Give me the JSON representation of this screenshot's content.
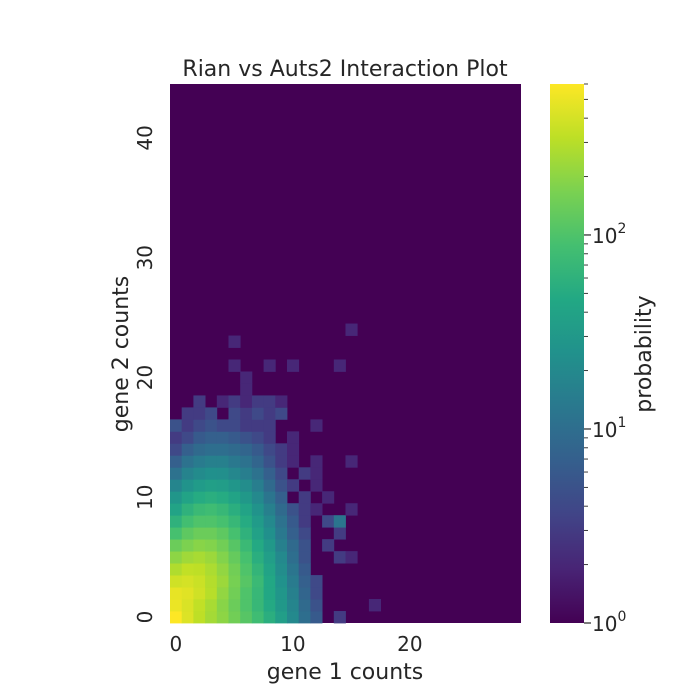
{
  "chart_data": {
    "type": "heatmap",
    "title": "Rian vs Auts2 Interaction Plot",
    "xlabel": "gene 1 counts",
    "ylabel": "gene 2 counts",
    "x_range": [
      0,
      29
    ],
    "y_range": [
      0,
      44
    ],
    "x_ticks": [
      0,
      10,
      20
    ],
    "y_ticks": [
      0,
      10,
      20,
      30,
      40
    ],
    "colormap": "viridis",
    "background_value": 1,
    "colorbar": {
      "label": "probability",
      "scale": "log",
      "range": [
        1,
        600
      ],
      "tick_values": [
        1,
        10,
        100
      ],
      "tick_labels": [
        {
          "base": "10",
          "exp": "0"
        },
        {
          "base": "10",
          "exp": "1"
        },
        {
          "base": "10",
          "exp": "2"
        }
      ]
    },
    "cells": [
      {
        "x": 0,
        "y": 0,
        "v": 600
      },
      {
        "x": 1,
        "y": 0,
        "v": 430
      },
      {
        "x": 2,
        "y": 0,
        "v": 320
      },
      {
        "x": 3,
        "y": 0,
        "v": 250
      },
      {
        "x": 4,
        "y": 0,
        "v": 200
      },
      {
        "x": 5,
        "y": 0,
        "v": 150
      },
      {
        "x": 6,
        "y": 0,
        "v": 110
      },
      {
        "x": 7,
        "y": 0,
        "v": 80
      },
      {
        "x": 8,
        "y": 0,
        "v": 55
      },
      {
        "x": 9,
        "y": 0,
        "v": 35
      },
      {
        "x": 10,
        "y": 0,
        "v": 20
      },
      {
        "x": 11,
        "y": 0,
        "v": 10
      },
      {
        "x": 12,
        "y": 0,
        "v": 6
      },
      {
        "x": 14,
        "y": 0,
        "v": 3
      },
      {
        "x": 0,
        "y": 1,
        "v": 500
      },
      {
        "x": 1,
        "y": 1,
        "v": 420
      },
      {
        "x": 2,
        "y": 1,
        "v": 330
      },
      {
        "x": 3,
        "y": 1,
        "v": 260
      },
      {
        "x": 4,
        "y": 1,
        "v": 190
      },
      {
        "x": 5,
        "y": 1,
        "v": 140
      },
      {
        "x": 6,
        "y": 1,
        "v": 100
      },
      {
        "x": 7,
        "y": 1,
        "v": 70
      },
      {
        "x": 8,
        "y": 1,
        "v": 48
      },
      {
        "x": 9,
        "y": 1,
        "v": 30
      },
      {
        "x": 10,
        "y": 1,
        "v": 18
      },
      {
        "x": 11,
        "y": 1,
        "v": 9
      },
      {
        "x": 12,
        "y": 1,
        "v": 5
      },
      {
        "x": 17,
        "y": 1,
        "v": 2
      },
      {
        "x": 0,
        "y": 2,
        "v": 480
      },
      {
        "x": 1,
        "y": 2,
        "v": 450
      },
      {
        "x": 2,
        "y": 2,
        "v": 380
      },
      {
        "x": 3,
        "y": 2,
        "v": 300
      },
      {
        "x": 4,
        "y": 2,
        "v": 210
      },
      {
        "x": 5,
        "y": 2,
        "v": 150
      },
      {
        "x": 6,
        "y": 2,
        "v": 100
      },
      {
        "x": 7,
        "y": 2,
        "v": 70
      },
      {
        "x": 8,
        "y": 2,
        "v": 45
      },
      {
        "x": 9,
        "y": 2,
        "v": 28
      },
      {
        "x": 10,
        "y": 2,
        "v": 16
      },
      {
        "x": 11,
        "y": 2,
        "v": 8
      },
      {
        "x": 12,
        "y": 2,
        "v": 4
      },
      {
        "x": 0,
        "y": 3,
        "v": 380
      },
      {
        "x": 1,
        "y": 3,
        "v": 400
      },
      {
        "x": 2,
        "y": 3,
        "v": 360
      },
      {
        "x": 3,
        "y": 3,
        "v": 290
      },
      {
        "x": 4,
        "y": 3,
        "v": 230
      },
      {
        "x": 5,
        "y": 3,
        "v": 160
      },
      {
        "x": 6,
        "y": 3,
        "v": 110
      },
      {
        "x": 7,
        "y": 3,
        "v": 75
      },
      {
        "x": 8,
        "y": 3,
        "v": 45
      },
      {
        "x": 9,
        "y": 3,
        "v": 25
      },
      {
        "x": 10,
        "y": 3,
        "v": 14
      },
      {
        "x": 11,
        "y": 3,
        "v": 7
      },
      {
        "x": 12,
        "y": 3,
        "v": 4
      },
      {
        "x": 0,
        "y": 4,
        "v": 280
      },
      {
        "x": 1,
        "y": 4,
        "v": 330
      },
      {
        "x": 2,
        "y": 4,
        "v": 320
      },
      {
        "x": 3,
        "y": 4,
        "v": 270
      },
      {
        "x": 4,
        "y": 4,
        "v": 210
      },
      {
        "x": 5,
        "y": 4,
        "v": 150
      },
      {
        "x": 6,
        "y": 4,
        "v": 100
      },
      {
        "x": 7,
        "y": 4,
        "v": 65
      },
      {
        "x": 8,
        "y": 4,
        "v": 40
      },
      {
        "x": 9,
        "y": 4,
        "v": 22
      },
      {
        "x": 10,
        "y": 4,
        "v": 12
      },
      {
        "x": 11,
        "y": 4,
        "v": 6
      },
      {
        "x": 0,
        "y": 5,
        "v": 200
      },
      {
        "x": 1,
        "y": 5,
        "v": 240
      },
      {
        "x": 2,
        "y": 5,
        "v": 260
      },
      {
        "x": 3,
        "y": 5,
        "v": 230
      },
      {
        "x": 4,
        "y": 5,
        "v": 180
      },
      {
        "x": 5,
        "y": 5,
        "v": 130
      },
      {
        "x": 6,
        "y": 5,
        "v": 90
      },
      {
        "x": 7,
        "y": 5,
        "v": 55
      },
      {
        "x": 8,
        "y": 5,
        "v": 35
      },
      {
        "x": 9,
        "y": 5,
        "v": 20
      },
      {
        "x": 10,
        "y": 5,
        "v": 10
      },
      {
        "x": 11,
        "y": 5,
        "v": 5
      },
      {
        "x": 14,
        "y": 5,
        "v": 3
      },
      {
        "x": 15,
        "y": 5,
        "v": 2
      },
      {
        "x": 0,
        "y": 6,
        "v": 140
      },
      {
        "x": 1,
        "y": 6,
        "v": 170
      },
      {
        "x": 2,
        "y": 6,
        "v": 190
      },
      {
        "x": 3,
        "y": 6,
        "v": 180
      },
      {
        "x": 4,
        "y": 6,
        "v": 150
      },
      {
        "x": 5,
        "y": 6,
        "v": 110
      },
      {
        "x": 6,
        "y": 6,
        "v": 75
      },
      {
        "x": 7,
        "y": 6,
        "v": 48
      },
      {
        "x": 8,
        "y": 6,
        "v": 30
      },
      {
        "x": 9,
        "y": 6,
        "v": 16
      },
      {
        "x": 10,
        "y": 6,
        "v": 9
      },
      {
        "x": 11,
        "y": 6,
        "v": 5
      },
      {
        "x": 13,
        "y": 6,
        "v": 3
      },
      {
        "x": 0,
        "y": 7,
        "v": 90
      },
      {
        "x": 1,
        "y": 7,
        "v": 120
      },
      {
        "x": 2,
        "y": 7,
        "v": 140
      },
      {
        "x": 3,
        "y": 7,
        "v": 140
      },
      {
        "x": 4,
        "y": 7,
        "v": 120
      },
      {
        "x": 5,
        "y": 7,
        "v": 90
      },
      {
        "x": 6,
        "y": 7,
        "v": 60
      },
      {
        "x": 7,
        "y": 7,
        "v": 38
      },
      {
        "x": 8,
        "y": 7,
        "v": 24
      },
      {
        "x": 9,
        "y": 7,
        "v": 13
      },
      {
        "x": 10,
        "y": 7,
        "v": 7
      },
      {
        "x": 11,
        "y": 7,
        "v": 4
      },
      {
        "x": 14,
        "y": 7,
        "v": 3
      },
      {
        "x": 0,
        "y": 8,
        "v": 60
      },
      {
        "x": 1,
        "y": 8,
        "v": 85
      },
      {
        "x": 2,
        "y": 8,
        "v": 100
      },
      {
        "x": 3,
        "y": 8,
        "v": 100
      },
      {
        "x": 4,
        "y": 8,
        "v": 90
      },
      {
        "x": 5,
        "y": 8,
        "v": 70
      },
      {
        "x": 6,
        "y": 8,
        "v": 50
      },
      {
        "x": 7,
        "y": 8,
        "v": 32
      },
      {
        "x": 8,
        "y": 8,
        "v": 20
      },
      {
        "x": 9,
        "y": 8,
        "v": 11
      },
      {
        "x": 10,
        "y": 8,
        "v": 6
      },
      {
        "x": 11,
        "y": 8,
        "v": 3
      },
      {
        "x": 13,
        "y": 8,
        "v": 4
      },
      {
        "x": 14,
        "y": 8,
        "v": 12
      },
      {
        "x": 0,
        "y": 9,
        "v": 40
      },
      {
        "x": 1,
        "y": 9,
        "v": 60
      },
      {
        "x": 2,
        "y": 9,
        "v": 75
      },
      {
        "x": 3,
        "y": 9,
        "v": 80
      },
      {
        "x": 4,
        "y": 9,
        "v": 70
      },
      {
        "x": 5,
        "y": 9,
        "v": 55
      },
      {
        "x": 6,
        "y": 9,
        "v": 40
      },
      {
        "x": 7,
        "y": 9,
        "v": 26
      },
      {
        "x": 8,
        "y": 9,
        "v": 16
      },
      {
        "x": 9,
        "y": 9,
        "v": 9
      },
      {
        "x": 10,
        "y": 9,
        "v": 5
      },
      {
        "x": 11,
        "y": 9,
        "v": 3
      },
      {
        "x": 12,
        "y": 9,
        "v": 2
      },
      {
        "x": 15,
        "y": 9,
        "v": 2
      },
      {
        "x": 0,
        "y": 10,
        "v": 28
      },
      {
        "x": 1,
        "y": 10,
        "v": 40
      },
      {
        "x": 2,
        "y": 10,
        "v": 50
      },
      {
        "x": 3,
        "y": 10,
        "v": 55
      },
      {
        "x": 4,
        "y": 10,
        "v": 50
      },
      {
        "x": 5,
        "y": 10,
        "v": 40
      },
      {
        "x": 6,
        "y": 10,
        "v": 30
      },
      {
        "x": 7,
        "y": 10,
        "v": 20
      },
      {
        "x": 8,
        "y": 10,
        "v": 12
      },
      {
        "x": 9,
        "y": 10,
        "v": 7
      },
      {
        "x": 11,
        "y": 10,
        "v": 3
      },
      {
        "x": 13,
        "y": 10,
        "v": 2
      },
      {
        "x": 0,
        "y": 11,
        "v": 18
      },
      {
        "x": 1,
        "y": 11,
        "v": 26
      },
      {
        "x": 2,
        "y": 11,
        "v": 32
      },
      {
        "x": 3,
        "y": 11,
        "v": 36
      },
      {
        "x": 4,
        "y": 11,
        "v": 34
      },
      {
        "x": 5,
        "y": 11,
        "v": 28
      },
      {
        "x": 6,
        "y": 11,
        "v": 22
      },
      {
        "x": 7,
        "y": 11,
        "v": 15
      },
      {
        "x": 8,
        "y": 11,
        "v": 9
      },
      {
        "x": 9,
        "y": 11,
        "v": 5
      },
      {
        "x": 10,
        "y": 11,
        "v": 3
      },
      {
        "x": 12,
        "y": 11,
        "v": 2
      },
      {
        "x": 0,
        "y": 12,
        "v": 11
      },
      {
        "x": 1,
        "y": 12,
        "v": 17
      },
      {
        "x": 2,
        "y": 12,
        "v": 21
      },
      {
        "x": 3,
        "y": 12,
        "v": 24
      },
      {
        "x": 4,
        "y": 12,
        "v": 23
      },
      {
        "x": 5,
        "y": 12,
        "v": 19
      },
      {
        "x": 6,
        "y": 12,
        "v": 15
      },
      {
        "x": 7,
        "y": 12,
        "v": 11
      },
      {
        "x": 8,
        "y": 12,
        "v": 7
      },
      {
        "x": 9,
        "y": 12,
        "v": 4
      },
      {
        "x": 11,
        "y": 12,
        "v": 3
      },
      {
        "x": 12,
        "y": 12,
        "v": 2
      },
      {
        "x": 0,
        "y": 13,
        "v": 7
      },
      {
        "x": 1,
        "y": 13,
        "v": 11
      },
      {
        "x": 2,
        "y": 13,
        "v": 14
      },
      {
        "x": 3,
        "y": 13,
        "v": 16
      },
      {
        "x": 4,
        "y": 13,
        "v": 16
      },
      {
        "x": 5,
        "y": 13,
        "v": 13
      },
      {
        "x": 6,
        "y": 13,
        "v": 11
      },
      {
        "x": 7,
        "y": 13,
        "v": 8
      },
      {
        "x": 8,
        "y": 13,
        "v": 5
      },
      {
        "x": 9,
        "y": 13,
        "v": 3
      },
      {
        "x": 10,
        "y": 13,
        "v": 2
      },
      {
        "x": 12,
        "y": 13,
        "v": 2
      },
      {
        "x": 15,
        "y": 13,
        "v": 2
      },
      {
        "x": 0,
        "y": 14,
        "v": 4
      },
      {
        "x": 1,
        "y": 14,
        "v": 7
      },
      {
        "x": 2,
        "y": 14,
        "v": 9
      },
      {
        "x": 3,
        "y": 14,
        "v": 10
      },
      {
        "x": 4,
        "y": 14,
        "v": 10
      },
      {
        "x": 5,
        "y": 14,
        "v": 9
      },
      {
        "x": 6,
        "y": 14,
        "v": 8
      },
      {
        "x": 7,
        "y": 14,
        "v": 6
      },
      {
        "x": 8,
        "y": 14,
        "v": 4
      },
      {
        "x": 9,
        "y": 14,
        "v": 3
      },
      {
        "x": 10,
        "y": 14,
        "v": 2
      },
      {
        "x": 0,
        "y": 15,
        "v": 3
      },
      {
        "x": 1,
        "y": 15,
        "v": 4
      },
      {
        "x": 2,
        "y": 15,
        "v": 6
      },
      {
        "x": 3,
        "y": 15,
        "v": 7
      },
      {
        "x": 4,
        "y": 15,
        "v": 7
      },
      {
        "x": 5,
        "y": 15,
        "v": 6
      },
      {
        "x": 6,
        "y": 15,
        "v": 5
      },
      {
        "x": 7,
        "y": 15,
        "v": 4
      },
      {
        "x": 8,
        "y": 15,
        "v": 3
      },
      {
        "x": 10,
        "y": 15,
        "v": 2
      },
      {
        "x": 0,
        "y": 16,
        "v": 5
      },
      {
        "x": 1,
        "y": 16,
        "v": 3
      },
      {
        "x": 2,
        "y": 16,
        "v": 4
      },
      {
        "x": 3,
        "y": 16,
        "v": 5
      },
      {
        "x": 4,
        "y": 16,
        "v": 4
      },
      {
        "x": 5,
        "y": 16,
        "v": 4
      },
      {
        "x": 6,
        "y": 16,
        "v": 3
      },
      {
        "x": 7,
        "y": 16,
        "v": 3
      },
      {
        "x": 8,
        "y": 16,
        "v": 3
      },
      {
        "x": 12,
        "y": 16,
        "v": 2
      },
      {
        "x": 1,
        "y": 17,
        "v": 3
      },
      {
        "x": 2,
        "y": 17,
        "v": 3
      },
      {
        "x": 3,
        "y": 17,
        "v": 4
      },
      {
        "x": 5,
        "y": 17,
        "v": 4
      },
      {
        "x": 6,
        "y": 17,
        "v": 3
      },
      {
        "x": 7,
        "y": 17,
        "v": 4
      },
      {
        "x": 8,
        "y": 17,
        "v": 3
      },
      {
        "x": 9,
        "y": 17,
        "v": 4
      },
      {
        "x": 2,
        "y": 18,
        "v": 3
      },
      {
        "x": 4,
        "y": 18,
        "v": 2
      },
      {
        "x": 5,
        "y": 18,
        "v": 3
      },
      {
        "x": 6,
        "y": 18,
        "v": 2
      },
      {
        "x": 7,
        "y": 18,
        "v": 3
      },
      {
        "x": 8,
        "y": 18,
        "v": 3
      },
      {
        "x": 9,
        "y": 18,
        "v": 2
      },
      {
        "x": 6,
        "y": 19,
        "v": 2
      },
      {
        "x": 6,
        "y": 20,
        "v": 2
      },
      {
        "x": 5,
        "y": 21,
        "v": 2
      },
      {
        "x": 8,
        "y": 21,
        "v": 2
      },
      {
        "x": 10,
        "y": 21,
        "v": 2
      },
      {
        "x": 14,
        "y": 21,
        "v": 2
      },
      {
        "x": 5,
        "y": 23,
        "v": 2
      },
      {
        "x": 15,
        "y": 24,
        "v": 2
      }
    ]
  }
}
